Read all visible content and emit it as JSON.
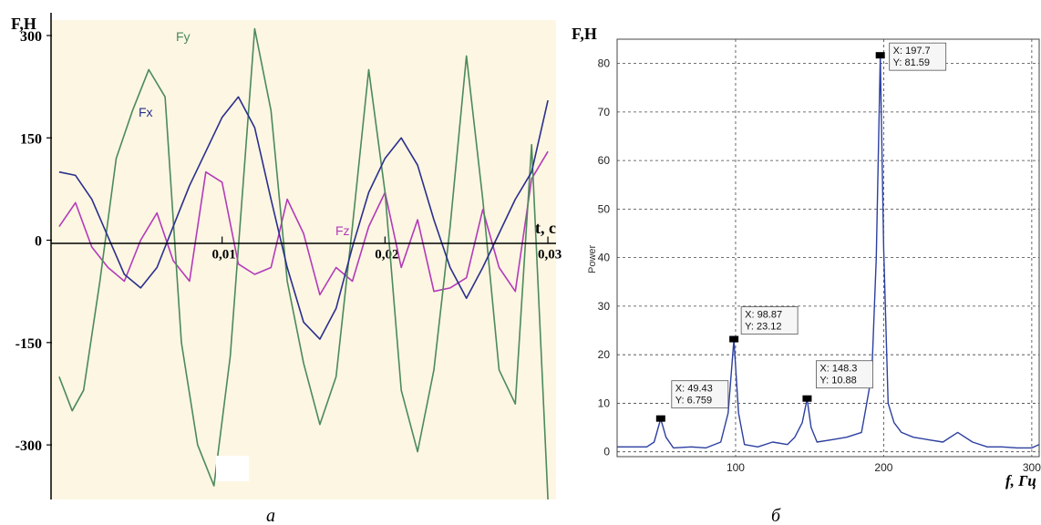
{
  "colors": {
    "left_bg": "#fcf6e3",
    "fx": "#2a2f8c",
    "fy": "#4c8a5a",
    "fz": "#b43ab8",
    "spectrum": "#2c3fa0",
    "grid": "#444444",
    "axis": "#000000"
  },
  "panel_a": {
    "ylabel": "F,H",
    "xlabel": "t, c",
    "caption": "a",
    "series_labels": {
      "fx": "Fx",
      "fy": "Fy",
      "fz": "Fz"
    }
  },
  "panel_b": {
    "ylabel": "F,H",
    "ylabel_inner": "Power",
    "xlabel": "f, Гц",
    "caption": "б",
    "markers": [
      {
        "x_label": "X: 49.43",
        "y_label": "Y: 6.759"
      },
      {
        "x_label": "X: 98.87",
        "y_label": "Y: 23.12"
      },
      {
        "x_label": "X: 148.3",
        "y_label": "Y: 10.88"
      },
      {
        "x_label": "X: 197.7",
        "y_label": "Y: 81.59"
      }
    ]
  },
  "chart_data": [
    {
      "type": "line",
      "panel": "a",
      "xlabel": "t, c",
      "ylabel": "F,H",
      "xlim": [
        -0.0005,
        0.0305
      ],
      "ylim": [
        -380,
        320
      ],
      "x_ticks": [
        0.01,
        0.02,
        0.03
      ],
      "x_tick_labels": [
        "0,01",
        "0,02",
        "0,03"
      ],
      "y_ticks": [
        300,
        150,
        0,
        -150,
        -300
      ],
      "y_tick_labels": [
        "300",
        "150",
        "0",
        "-150",
        "-300"
      ],
      "series": [
        {
          "name": "Fx",
          "x": [
            0,
            0.001,
            0.002,
            0.003,
            0.004,
            0.005,
            0.006,
            0.007,
            0.008,
            0.009,
            0.01,
            0.011,
            0.012,
            0.013,
            0.014,
            0.015,
            0.016,
            0.017,
            0.018,
            0.019,
            0.02,
            0.021,
            0.022,
            0.023,
            0.024,
            0.025,
            0.026,
            0.027,
            0.028,
            0.029,
            0.03
          ],
          "y": [
            100,
            95,
            60,
            5,
            -50,
            -70,
            -40,
            20,
            80,
            130,
            180,
            210,
            165,
            60,
            -40,
            -120,
            -145,
            -100,
            -10,
            70,
            120,
            150,
            110,
            30,
            -40,
            -85,
            -40,
            10,
            60,
            100,
            205
          ]
        },
        {
          "name": "Fy",
          "x": [
            0,
            0.0008,
            0.0015,
            0.0025,
            0.0035,
            0.0045,
            0.0055,
            0.0065,
            0.0075,
            0.0085,
            0.0095,
            0.0105,
            0.0115,
            0.012,
            0.013,
            0.014,
            0.015,
            0.016,
            0.017,
            0.018,
            0.019,
            0.02,
            0.021,
            0.022,
            0.023,
            0.024,
            0.025,
            0.026,
            0.027,
            0.028,
            0.029,
            0.03
          ],
          "y": [
            -200,
            -250,
            -220,
            -60,
            120,
            190,
            250,
            210,
            -150,
            -300,
            -360,
            -170,
            150,
            310,
            190,
            -60,
            -180,
            -270,
            -200,
            20,
            250,
            70,
            -220,
            -310,
            -190,
            20,
            270,
            60,
            -190,
            -240,
            140,
            -380
          ]
        },
        {
          "name": "Fz",
          "x": [
            0,
            0.001,
            0.002,
            0.003,
            0.004,
            0.005,
            0.006,
            0.007,
            0.008,
            0.009,
            0.01,
            0.011,
            0.012,
            0.013,
            0.014,
            0.015,
            0.016,
            0.017,
            0.018,
            0.019,
            0.02,
            0.021,
            0.022,
            0.023,
            0.024,
            0.025,
            0.026,
            0.027,
            0.028,
            0.029,
            0.03
          ],
          "y": [
            20,
            55,
            -10,
            -40,
            -60,
            0,
            40,
            -30,
            -60,
            100,
            85,
            -35,
            -50,
            -40,
            60,
            10,
            -80,
            -40,
            -60,
            20,
            70,
            -40,
            30,
            -75,
            -70,
            -55,
            45,
            -40,
            -75,
            90,
            130
          ]
        }
      ]
    },
    {
      "type": "line",
      "panel": "b",
      "xlabel": "f, Гц",
      "ylabel": "Power",
      "xlim": [
        20,
        305
      ],
      "ylim": [
        -1,
        85
      ],
      "x_ticks": [
        100,
        200,
        300
      ],
      "x_tick_labels": [
        "100",
        "200",
        "300"
      ],
      "y_ticks": [
        0,
        10,
        20,
        30,
        40,
        50,
        60,
        70,
        80
      ],
      "y_tick_labels": [
        "0",
        "10",
        "20",
        "30",
        "40",
        "50",
        "60",
        "70",
        "80"
      ],
      "grid": true,
      "series": [
        {
          "name": "",
          "x": [
            20,
            40,
            45,
            49.43,
            53,
            58,
            70,
            80,
            90,
            95,
            98.87,
            102,
            106,
            115,
            125,
            135,
            140,
            145,
            148.3,
            151,
            155,
            165,
            175,
            185,
            188,
            192,
            195,
            197.7,
            200,
            203,
            207,
            212,
            220,
            230,
            240,
            250,
            260,
            270,
            280,
            290,
            300,
            305
          ],
          "y": [
            1,
            1,
            2,
            6.8,
            3,
            0.8,
            1,
            0.8,
            2,
            8,
            23.1,
            8,
            1.5,
            1,
            2,
            1.5,
            3,
            6,
            10.9,
            5,
            2,
            2.5,
            3,
            4,
            9,
            16,
            40,
            81.6,
            42,
            10,
            6,
            4,
            3,
            2.5,
            2,
            4,
            2,
            1,
            1,
            0.8,
            0.8,
            1.5
          ]
        }
      ],
      "annotations": [
        {
          "x": 49.43,
          "y": 6.759,
          "text": [
            "X: 49.43",
            "Y: 6.759"
          ]
        },
        {
          "x": 98.87,
          "y": 23.12,
          "text": [
            "X: 98.87",
            "Y: 23.12"
          ]
        },
        {
          "x": 148.3,
          "y": 10.88,
          "text": [
            "X: 148.3",
            "Y: 10.88"
          ]
        },
        {
          "x": 197.7,
          "y": 81.59,
          "text": [
            "X: 197.7",
            "Y: 81.59"
          ]
        }
      ]
    }
  ]
}
